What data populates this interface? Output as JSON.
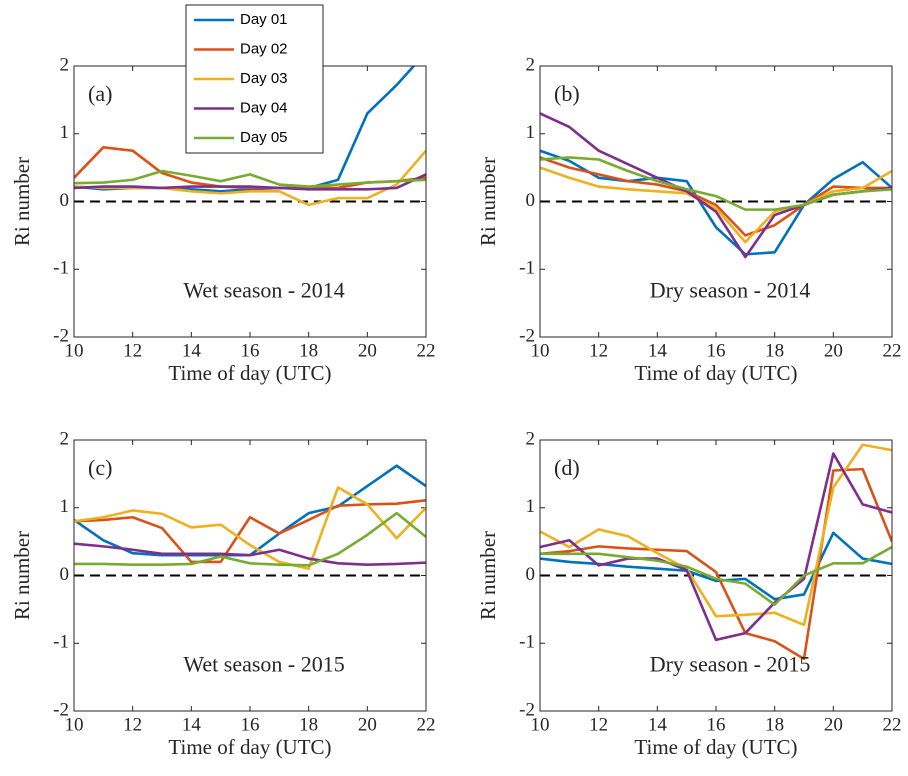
{
  "chart_data": [
    {
      "type": "line",
      "panel_label": "(a)",
      "annotation": "Wet season - 2014",
      "xlabel": "Time of day (UTC)",
      "ylabel": "Ri number",
      "x": [
        10,
        11,
        12,
        13,
        14,
        15,
        16,
        17,
        18,
        19,
        20,
        21,
        22
      ],
      "xlim": [
        10,
        22
      ],
      "xticks": [
        10,
        12,
        14,
        16,
        18,
        20,
        22
      ],
      "ylim": [
        -2,
        2
      ],
      "yticks": [
        -2,
        -1,
        0,
        1,
        2
      ],
      "hline": 0,
      "series": [
        {
          "name": "Day 01",
          "color": "#0072BD",
          "values": [
            0.22,
            0.18,
            0.2,
            0.2,
            0.18,
            0.15,
            0.18,
            0.2,
            0.2,
            0.32,
            1.3,
            1.72,
            2.2
          ]
        },
        {
          "name": "Day 02",
          "color": "#D95319",
          "values": [
            0.35,
            0.8,
            0.75,
            0.42,
            0.28,
            0.22,
            0.2,
            0.2,
            0.2,
            0.2,
            0.28,
            0.3,
            0.35
          ]
        },
        {
          "name": "Day 03",
          "color": "#EDB120",
          "values": [
            0.22,
            0.2,
            0.2,
            0.2,
            0.15,
            0.12,
            0.15,
            0.15,
            -0.05,
            0.05,
            0.05,
            0.25,
            0.75
          ]
        },
        {
          "name": "Day 04",
          "color": "#7E2F8E",
          "values": [
            0.2,
            0.22,
            0.22,
            0.2,
            0.22,
            0.22,
            0.22,
            0.2,
            0.18,
            0.18,
            0.18,
            0.2,
            0.4
          ]
        },
        {
          "name": "Day 05",
          "color": "#77AC30",
          "values": [
            0.27,
            0.28,
            0.32,
            0.45,
            0.38,
            0.3,
            0.4,
            0.25,
            0.22,
            0.25,
            0.28,
            0.3,
            0.32
          ]
        }
      ]
    },
    {
      "type": "line",
      "panel_label": "(b)",
      "annotation": "Dry season - 2014",
      "xlabel": "Time of day (UTC)",
      "ylabel": "Ri number",
      "x": [
        10,
        11,
        12,
        13,
        14,
        15,
        16,
        17,
        18,
        19,
        20,
        21,
        22
      ],
      "xlim": [
        10,
        22
      ],
      "xticks": [
        10,
        12,
        14,
        16,
        18,
        20,
        22
      ],
      "ylim": [
        -2,
        2
      ],
      "yticks": [
        -2,
        -1,
        0,
        1,
        2
      ],
      "hline": 0,
      "series": [
        {
          "color": "#0072BD",
          "values": [
            0.75,
            0.6,
            0.35,
            0.3,
            0.35,
            0.3,
            -0.38,
            -0.78,
            -0.75,
            -0.05,
            0.33,
            0.58,
            0.2
          ]
        },
        {
          "color": "#D95319",
          "values": [
            0.65,
            0.5,
            0.4,
            0.3,
            0.25,
            0.15,
            -0.05,
            -0.5,
            -0.35,
            -0.05,
            0.22,
            0.2,
            0.2
          ]
        },
        {
          "color": "#EDB120",
          "values": [
            0.5,
            0.35,
            0.22,
            0.18,
            0.15,
            0.12,
            -0.1,
            -0.6,
            -0.15,
            -0.05,
            0.15,
            0.2,
            0.45
          ]
        },
        {
          "color": "#7E2F8E",
          "values": [
            1.3,
            1.1,
            0.75,
            0.55,
            0.35,
            0.15,
            -0.15,
            -0.82,
            -0.2,
            -0.05,
            0.1,
            0.15,
            0.2
          ]
        },
        {
          "color": "#77AC30",
          "values": [
            0.62,
            0.65,
            0.62,
            0.45,
            0.3,
            0.18,
            0.08,
            -0.12,
            -0.12,
            -0.05,
            0.1,
            0.15,
            0.18
          ]
        }
      ]
    },
    {
      "type": "line",
      "panel_label": "(c)",
      "annotation": "Wet season - 2015",
      "xlabel": "Time of day (UTC)",
      "ylabel": "Ri number",
      "x": [
        10,
        11,
        12,
        13,
        14,
        15,
        16,
        17,
        18,
        19,
        20,
        21,
        22
      ],
      "xlim": [
        10,
        22
      ],
      "xticks": [
        10,
        12,
        14,
        16,
        18,
        20,
        22
      ],
      "ylim": [
        -2,
        2
      ],
      "yticks": [
        -2,
        -1,
        0,
        1,
        2
      ],
      "hline": 0,
      "series": [
        {
          "color": "#0072BD",
          "values": [
            0.82,
            0.52,
            0.33,
            0.3,
            0.3,
            0.3,
            0.3,
            0.62,
            0.92,
            1.02,
            1.32,
            1.62,
            1.32
          ]
        },
        {
          "color": "#D95319",
          "values": [
            0.8,
            0.82,
            0.86,
            0.7,
            0.2,
            0.2,
            0.86,
            0.62,
            0.82,
            1.03,
            1.05,
            1.06,
            1.11
          ]
        },
        {
          "color": "#EDB120",
          "values": [
            0.8,
            0.86,
            0.96,
            0.91,
            0.71,
            0.75,
            0.45,
            0.2,
            0.1,
            1.3,
            1.05,
            0.55,
            1.0
          ]
        },
        {
          "color": "#7E2F8E",
          "values": [
            0.47,
            0.43,
            0.38,
            0.32,
            0.32,
            0.32,
            0.3,
            0.38,
            0.25,
            0.18,
            0.16,
            0.17,
            0.19
          ]
        },
        {
          "color": "#77AC30",
          "values": [
            0.17,
            0.17,
            0.16,
            0.16,
            0.17,
            0.28,
            0.18,
            0.16,
            0.15,
            0.32,
            0.6,
            0.92,
            0.57
          ]
        }
      ]
    },
    {
      "type": "line",
      "panel_label": "(d)",
      "annotation": "Dry season - 2015",
      "xlabel": "Time of day (UTC)",
      "ylabel": "Ri number",
      "x": [
        10,
        11,
        12,
        13,
        14,
        15,
        16,
        17,
        18,
        19,
        20,
        21,
        22
      ],
      "xlim": [
        10,
        22
      ],
      "xticks": [
        10,
        12,
        14,
        16,
        18,
        20,
        22
      ],
      "ylim": [
        -2,
        2
      ],
      "yticks": [
        -2,
        -1,
        0,
        1,
        2
      ],
      "hline": 0,
      "series": [
        {
          "color": "#0072BD",
          "values": [
            0.25,
            0.2,
            0.17,
            0.13,
            0.1,
            0.07,
            -0.08,
            -0.05,
            -0.35,
            -0.28,
            0.63,
            0.25,
            0.17
          ]
        },
        {
          "color": "#D95319",
          "values": [
            0.32,
            0.36,
            0.43,
            0.4,
            0.38,
            0.36,
            0.05,
            -0.85,
            -0.97,
            -1.23,
            1.55,
            1.57,
            0.5
          ]
        },
        {
          "color": "#EDB120",
          "values": [
            0.65,
            0.42,
            0.68,
            0.58,
            0.33,
            0.1,
            -0.6,
            -0.58,
            -0.55,
            -0.73,
            1.3,
            1.93,
            1.85
          ]
        },
        {
          "color": "#7E2F8E",
          "values": [
            0.42,
            0.52,
            0.15,
            0.25,
            0.25,
            0.08,
            -0.95,
            -0.85,
            -0.4,
            -0.05,
            1.8,
            1.05,
            0.93
          ]
        },
        {
          "color": "#77AC30",
          "values": [
            0.32,
            0.32,
            0.32,
            0.27,
            0.22,
            0.13,
            -0.05,
            -0.12,
            -0.43,
            0.0,
            0.18,
            0.18,
            0.42
          ]
        }
      ]
    }
  ]
}
